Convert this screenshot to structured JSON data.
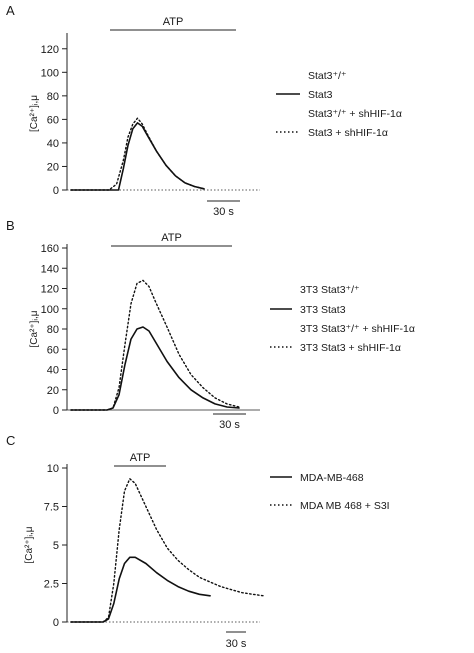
{
  "chart_data": [
    {
      "panel": "A",
      "type": "line",
      "stimulus": "ATP",
      "ylabel": "[Ca²⁺]ᵢ,μ",
      "ylim": [
        0,
        130
      ],
      "yticks": [
        0,
        20,
        40,
        60,
        80,
        100,
        120
      ],
      "scalebar": "30 s",
      "legend": [
        {
          "text": "Stat3⁺/⁺",
          "style": "none"
        },
        {
          "text": "Stat3",
          "style": "solid"
        },
        {
          "text": "Stat3⁺/⁺ + shHIF-1α",
          "style": "none"
        },
        {
          "text": "Stat3 + shHIF-1α",
          "style": "dotted"
        }
      ],
      "series": [
        {
          "style": "solid",
          "x": [
            0,
            30,
            40,
            50,
            55,
            60,
            65,
            70,
            75,
            80,
            90,
            100,
            110,
            120,
            130,
            140
          ],
          "values": [
            0,
            0,
            0,
            0,
            18,
            38,
            52,
            57,
            54,
            47,
            33,
            21,
            12,
            6,
            3,
            1
          ]
        },
        {
          "style": "dotted",
          "x": [
            0,
            30,
            40,
            48,
            55,
            60,
            65,
            70,
            75,
            80,
            90,
            100,
            110,
            120,
            130,
            140
          ],
          "values": [
            0,
            0,
            0,
            5,
            25,
            45,
            56,
            61,
            56,
            48,
            33,
            21,
            12,
            6,
            3,
            1
          ]
        }
      ]
    },
    {
      "panel": "B",
      "type": "line",
      "stimulus": "ATP",
      "ylabel": "[Ca²⁺]ᵢ,μ",
      "ylim": [
        0,
        160
      ],
      "yticks": [
        0,
        20,
        40,
        60,
        80,
        100,
        120,
        140,
        160
      ],
      "scalebar": "30 s",
      "legend": [
        {
          "text": "3T3 Stat3⁺/⁺",
          "style": "none"
        },
        {
          "text": "3T3 Stat3",
          "style": "solid"
        },
        {
          "text": "3T3 Stat3⁺/⁺ + shHIF-1α",
          "style": "none"
        },
        {
          "text": "3T3 Stat3 + shHIF-1α",
          "style": "dotted"
        }
      ],
      "series": [
        {
          "style": "solid",
          "x": [
            0,
            20,
            30,
            35,
            40,
            45,
            50,
            55,
            60,
            65,
            70,
            80,
            90,
            100,
            110,
            120,
            130,
            140
          ],
          "values": [
            0,
            0,
            0,
            2,
            15,
            45,
            70,
            80,
            82,
            78,
            68,
            48,
            32,
            20,
            12,
            6,
            3,
            2
          ]
        },
        {
          "style": "dotted",
          "x": [
            0,
            20,
            30,
            35,
            40,
            45,
            50,
            55,
            60,
            65,
            70,
            80,
            90,
            100,
            110,
            120,
            130,
            140
          ],
          "values": [
            0,
            0,
            0,
            2,
            22,
            65,
            105,
            125,
            128,
            122,
            108,
            82,
            55,
            35,
            22,
            12,
            6,
            3
          ]
        }
      ]
    },
    {
      "panel": "C",
      "type": "line",
      "stimulus": "ATP",
      "ylabel": "[Ca²⁺]ᵢ,μ",
      "ylim": [
        0,
        10
      ],
      "yticks": [
        0,
        2.5,
        5,
        7.5,
        10
      ],
      "ytick_labels": [
        "0",
        "2.5",
        "5",
        "7.5",
        "10"
      ],
      "scalebar": "30 s",
      "legend": [
        {
          "text": "MDA-MB-468",
          "style": "solid"
        },
        {
          "text": "MDA MB 468 + S3I",
          "style": "dotted"
        }
      ],
      "series": [
        {
          "style": "solid",
          "x": [
            0,
            20,
            30,
            35,
            40,
            45,
            50,
            55,
            60,
            70,
            80,
            90,
            100,
            110,
            120,
            130
          ],
          "values": [
            0,
            0,
            0,
            0.2,
            1.2,
            2.8,
            3.8,
            4.2,
            4.2,
            3.8,
            3.2,
            2.7,
            2.3,
            2.0,
            1.8,
            1.7
          ]
        },
        {
          "style": "dotted",
          "x": [
            0,
            20,
            30,
            35,
            40,
            45,
            50,
            55,
            60,
            70,
            80,
            90,
            100,
            110,
            120,
            130,
            140,
            150,
            160,
            170,
            180
          ],
          "values": [
            0,
            0,
            0,
            0.3,
            2.5,
            6.0,
            8.5,
            9.3,
            9.0,
            7.5,
            6.0,
            4.8,
            4.0,
            3.4,
            2.9,
            2.6,
            2.3,
            2.1,
            1.9,
            1.8,
            1.7
          ]
        }
      ]
    }
  ]
}
